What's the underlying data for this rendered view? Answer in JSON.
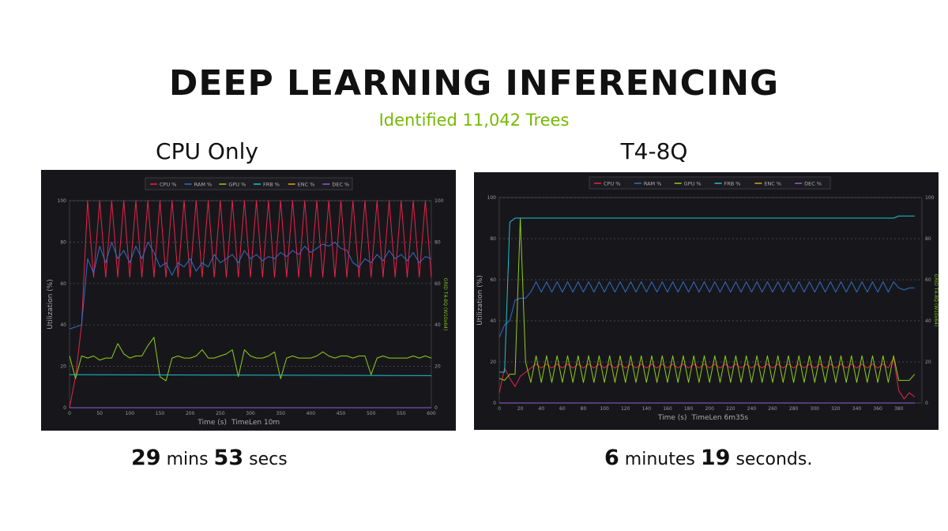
{
  "slide": {
    "title": "DEEP LEARNING INFERENCING",
    "subtitle": "Identified 11,042 Trees",
    "accent_color": "#76b900"
  },
  "panels": [
    {
      "title": "CPU Only",
      "result": {
        "n1": "29",
        "u1": "mins",
        "n2": "53",
        "u2": "secs"
      }
    },
    {
      "title": "T4-8Q",
      "result": {
        "n1": "6",
        "u1": "minutes",
        "n2": "19",
        "u2": "seconds."
      }
    }
  ],
  "chart_data": [
    {
      "type": "line",
      "title": "",
      "xlabel": "Time (s)",
      "timelen": "TimeLen 10m",
      "ylabel": "Utilization (%)",
      "y2label": "GRID T4-8Q (W10x64)",
      "xlim": [
        0,
        600
      ],
      "ylim": [
        0,
        100
      ],
      "xticks": [
        "0",
        "50",
        "100",
        "150",
        "200",
        "250",
        "300",
        "350",
        "400",
        "450",
        "500",
        "550",
        "600"
      ],
      "yticks": [
        "0",
        "20",
        "40",
        "60",
        "80",
        "100"
      ],
      "grid": true,
      "legend_position": "top-center",
      "series": [
        {
          "name": "CPU %",
          "color": "#e8234a",
          "step": 10,
          "values": [
            0,
            15,
            40,
            100,
            63,
            100,
            63,
            100,
            63,
            100,
            63,
            100,
            63,
            100,
            63,
            100,
            63,
            100,
            63,
            100,
            63,
            100,
            63,
            100,
            63,
            100,
            63,
            100,
            63,
            100,
            63,
            100,
            63,
            100,
            63,
            100,
            63,
            100,
            63,
            100,
            63,
            100,
            63,
            100,
            63,
            100,
            63,
            100,
            63,
            100,
            63,
            100,
            63,
            100,
            63,
            100,
            63,
            100,
            63,
            100,
            63
          ]
        },
        {
          "name": "RAM %",
          "color": "#2f6fc4",
          "step": 10,
          "values": [
            38,
            39,
            40,
            72,
            65,
            78,
            70,
            80,
            72,
            76,
            70,
            78,
            72,
            80,
            75,
            68,
            70,
            64,
            70,
            68,
            72,
            66,
            70,
            68,
            74,
            70,
            72,
            74,
            70,
            76,
            72,
            74,
            71,
            73,
            72,
            75,
            73,
            76,
            74,
            78,
            75,
            77,
            79,
            78,
            80,
            77,
            76,
            70,
            68,
            72,
            70,
            74,
            71,
            76,
            72,
            74,
            71,
            75,
            70,
            73,
            72
          ]
        },
        {
          "name": "GPU %",
          "color": "#8fcc1a",
          "step": 10,
          "values": [
            25,
            14,
            25,
            24,
            25,
            23,
            24,
            24,
            31,
            26,
            24,
            25,
            25,
            30,
            34,
            15,
            13,
            24,
            25,
            24,
            24,
            25,
            28,
            24,
            24,
            25,
            26,
            28,
            15,
            28,
            25,
            24,
            24,
            25,
            27,
            14,
            24,
            25,
            24,
            24,
            24,
            25,
            27,
            25,
            24,
            25,
            25,
            24,
            25,
            25,
            16,
            24,
            25,
            24,
            24,
            24,
            24,
            25,
            24,
            25,
            24
          ]
        },
        {
          "name": "FRB %",
          "color": "#1ec0d0",
          "step": 600,
          "values": [
            16,
            15.5
          ]
        },
        {
          "name": "ENC %",
          "color": "#e0a020",
          "step": 600,
          "values": [
            0,
            0
          ]
        },
        {
          "name": "DEC %",
          "color": "#9a5ad0",
          "step": 600,
          "values": [
            0,
            0
          ]
        }
      ]
    },
    {
      "type": "line",
      "title": "",
      "xlabel": "Time (s)",
      "timelen": "TimeLen 6m35s",
      "ylabel": "Utilization (%)",
      "y2label": "GRID T4-8Q (W10x64)",
      "xlim": [
        0,
        402
      ],
      "ylim": [
        0,
        100
      ],
      "xticks": [
        "0",
        "20",
        "40",
        "60",
        "80",
        "100",
        "120",
        "140",
        "160",
        "180",
        "200",
        "220",
        "240",
        "260",
        "280",
        "300",
        "320",
        "340",
        "360",
        "380"
      ],
      "yticks": [
        "0",
        "20",
        "40",
        "60",
        "80",
        "100"
      ],
      "grid": true,
      "legend_position": "top-center",
      "series": [
        {
          "name": "CPU %",
          "color": "#e8234a",
          "step": 5,
          "values": [
            5,
            17,
            12,
            8,
            13,
            15,
            17,
            19,
            17,
            19,
            17,
            19,
            17,
            19,
            17,
            19,
            17,
            19,
            17,
            19,
            17,
            19,
            17,
            19,
            17,
            19,
            17,
            19,
            17,
            19,
            17,
            19,
            17,
            19,
            17,
            19,
            17,
            19,
            17,
            19,
            17,
            19,
            17,
            19,
            17,
            19,
            17,
            19,
            17,
            19,
            17,
            19,
            17,
            19,
            17,
            19,
            17,
            19,
            17,
            19,
            17,
            19,
            17,
            19,
            17,
            19,
            17,
            19,
            17,
            19,
            17,
            19,
            17,
            19,
            17,
            22,
            6,
            2,
            5,
            3
          ]
        },
        {
          "name": "RAM %",
          "color": "#2f6fc4",
          "step": 5,
          "values": [
            32,
            38,
            40,
            50,
            51,
            51,
            54,
            59,
            54,
            59,
            54,
            59,
            54,
            59,
            54,
            59,
            54,
            59,
            54,
            59,
            54,
            59,
            54,
            59,
            54,
            59,
            54,
            59,
            54,
            59,
            54,
            59,
            54,
            59,
            54,
            59,
            54,
            59,
            54,
            59,
            54,
            59,
            54,
            59,
            54,
            59,
            54,
            59,
            54,
            59,
            54,
            59,
            54,
            59,
            54,
            59,
            54,
            59,
            54,
            59,
            54,
            59,
            54,
            59,
            54,
            59,
            54,
            59,
            54,
            59,
            54,
            59,
            54,
            59,
            54,
            59,
            56,
            55,
            56,
            56
          ]
        },
        {
          "name": "GPU %",
          "color": "#8fcc1a",
          "step": 5,
          "values": [
            12,
            11,
            14,
            14,
            90,
            20,
            10,
            23,
            10,
            23,
            10,
            23,
            10,
            23,
            10,
            23,
            10,
            23,
            10,
            23,
            10,
            23,
            10,
            23,
            10,
            23,
            10,
            23,
            10,
            23,
            10,
            23,
            10,
            23,
            10,
            23,
            10,
            23,
            10,
            23,
            10,
            23,
            10,
            23,
            10,
            23,
            10,
            23,
            10,
            23,
            10,
            23,
            10,
            23,
            10,
            23,
            10,
            23,
            10,
            23,
            10,
            23,
            10,
            23,
            10,
            23,
            10,
            23,
            10,
            23,
            10,
            23,
            10,
            23,
            10,
            23,
            11,
            11,
            11,
            14
          ]
        },
        {
          "name": "FRB %",
          "color": "#1ec0d0",
          "step": 5,
          "values": [
            15,
            15,
            88,
            90,
            90,
            90,
            90,
            90,
            90,
            90,
            90,
            90,
            90,
            90,
            90,
            90,
            90,
            90,
            90,
            90,
            90,
            90,
            90,
            90,
            90,
            90,
            90,
            90,
            90,
            90,
            90,
            90,
            90,
            90,
            90,
            90,
            90,
            90,
            90,
            90,
            90,
            90,
            90,
            90,
            90,
            90,
            90,
            90,
            90,
            90,
            90,
            90,
            90,
            90,
            90,
            90,
            90,
            90,
            90,
            90,
            90,
            90,
            90,
            90,
            90,
            90,
            90,
            90,
            90,
            90,
            90,
            90,
            90,
            90,
            90,
            90,
            91,
            91,
            91,
            91
          ]
        },
        {
          "name": "ENC %",
          "color": "#e0a020",
          "step": 395,
          "values": [
            0,
            0
          ]
        },
        {
          "name": "DEC %",
          "color": "#9a5ad0",
          "step": 395,
          "values": [
            0,
            0
          ]
        }
      ]
    }
  ]
}
